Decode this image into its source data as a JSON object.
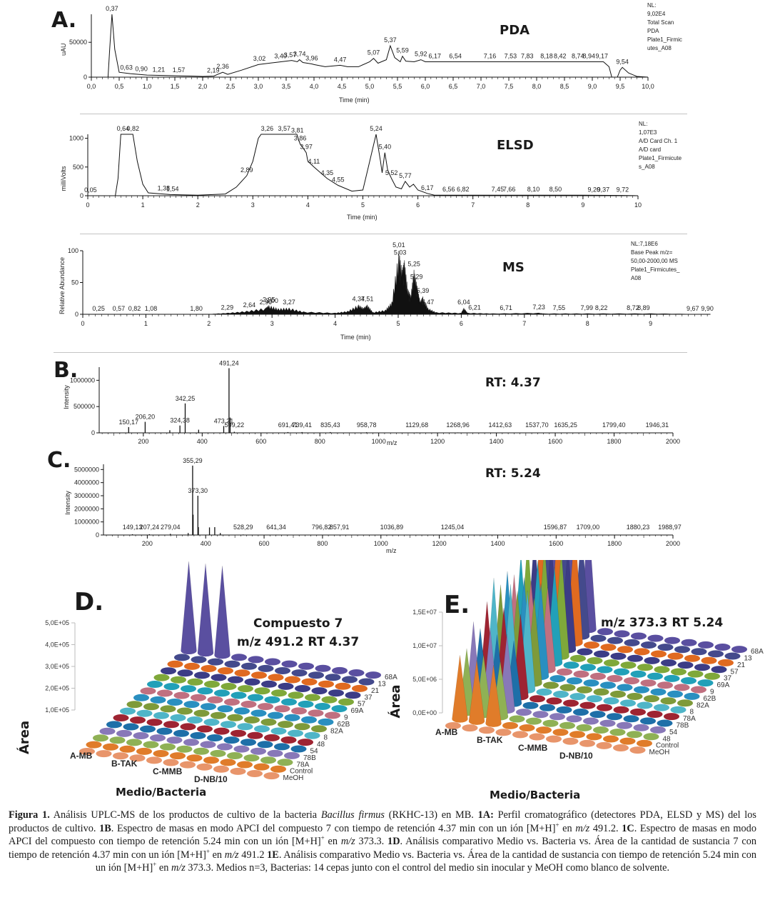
{
  "figure": {
    "panel_letters": {
      "A": "A.",
      "B": "B.",
      "C": "C.",
      "D": "D.",
      "E": "E."
    },
    "caption": {
      "label": "Figura 1.",
      "text_1": " Análisis UPLC-MS de los productos de cultivo de la bacteria ",
      "species": "Bacillus firmus",
      "text_2": " (RKHC-13) en MB. ",
      "ref_1A": "1A:",
      "text_3": " Perfil cromatográfico (detectores PDA, ELSD y MS) del los productos de cultivo. ",
      "ref_1B": "1B",
      "text_4": ". Espectro de masas en modo APCI del compuesto 7 con tiempo de retención 4.37 min con un ión [M+H]",
      "sup": "+",
      "text_5": " en ",
      "mz": "m/z",
      "text_6": " 491.2. ",
      "ref_1C": "1C",
      "text_7": ". Espectro de masas en modo APCI del compuesto con tiempo de retención 5.24 min con un ión [M+H]",
      "text_8": " en ",
      "text_9": " 373.3. ",
      "ref_1D": "1D",
      "text_10": ". Análisis comparativo Medio vs. Bacteria vs. Área de la cantidad de sustancia 7 con tiempo de retención 4.37 min con un ión [M+H]",
      "text_11": " en ",
      "text_12": " 491.2 ",
      "ref_1E": "1E",
      "text_13": ". Análisis comparativo Medio vs. Bacteria vs. Área de la cantidad de sustancia con tiempo de retención 5.24 min con un ión [M+H]",
      "text_14": " en ",
      "text_15": " 373.3. Medios n=3, Bacterias: 14 cepas junto con el control del medio sin inocular y MeOH como blanco de solvente."
    }
  },
  "chart_data": [
    {
      "id": "PDA",
      "type": "line",
      "title": "PDA",
      "xlabel": "Time (min)",
      "ylabel": "uAU",
      "xlim": [
        0,
        10
      ],
      "ylim": [
        0,
        90200
      ],
      "x_ticks": [
        "0,0",
        "0,5",
        "1,0",
        "1,5",
        "2,0",
        "2,5",
        "3,0",
        "3,5",
        "4,0",
        "4,5",
        "5,0",
        "5,5",
        "6,0",
        "6,5",
        "7,0",
        "7,5",
        "8,0",
        "8,5",
        "9,0",
        "9,5",
        "10,0"
      ],
      "y_ticks": [
        "0",
        "50000"
      ],
      "info": [
        "NL:",
        "9,02E4",
        "Total Scan",
        "PDA",
        "Plate1_Firmic",
        "utes_A08"
      ],
      "peak_labels": [
        "0,37",
        "0,63",
        "0,90",
        "1,21",
        "1,57",
        "2,19",
        "2,36",
        "3,02",
        "3,40",
        "3,57",
        "3,74",
        "3,96",
        "4,47",
        "5,07",
        "5,37",
        "5,59",
        "5,92",
        "6,17",
        "6,54",
        "7,16",
        "7,53",
        "7,83",
        "8,18",
        "8,42",
        "8,74",
        "8,94",
        "9,17",
        "9,54"
      ],
      "x": [
        0,
        0.3,
        0.33,
        0.37,
        0.42,
        0.5,
        0.7,
        1.0,
        1.5,
        1.8,
        2.0,
        2.2,
        2.3,
        2.36,
        2.45,
        2.7,
        3.0,
        3.3,
        3.5,
        3.6,
        3.7,
        3.74,
        3.8,
        3.96,
        4.0,
        4.2,
        4.47,
        4.6,
        4.8,
        5.0,
        5.07,
        5.15,
        5.3,
        5.37,
        5.45,
        5.55,
        5.59,
        5.65,
        5.8,
        5.92,
        6.0,
        6.5,
        7.0,
        7.5,
        8.0,
        8.5,
        9.0,
        9.2,
        9.3,
        9.35,
        9.45,
        9.5,
        9.54,
        9.65,
        9.8,
        10
      ],
      "y": [
        0,
        0,
        40000,
        90200,
        40000,
        7000,
        5000,
        3000,
        2000,
        1500,
        1000,
        1500,
        5000,
        7000,
        4000,
        10000,
        18000,
        21000,
        23000,
        24000,
        22000,
        25000,
        21000,
        19000,
        18000,
        15000,
        17000,
        15000,
        15000,
        22000,
        27000,
        20000,
        25000,
        45000,
        28000,
        22000,
        30000,
        23000,
        22000,
        25000,
        22000,
        22000,
        22000,
        22000,
        22000,
        22000,
        22000,
        22000,
        15000,
        0,
        0,
        10000,
        14000,
        6000,
        1000,
        0
      ]
    },
    {
      "id": "ELSD",
      "type": "line",
      "title": "ELSD",
      "xlabel": "Time (min)",
      "ylabel": "milliVolts",
      "xlim": [
        0,
        10
      ],
      "ylim": [
        0,
        1070
      ],
      "x_ticks": [
        "0",
        "1",
        "2",
        "3",
        "4",
        "5",
        "6",
        "7",
        "8",
        "9",
        "10"
      ],
      "y_ticks": [
        "0",
        "500",
        "1000"
      ],
      "info": [
        "NL:",
        "1,07E3",
        "A/D Card Ch. 1",
        "A/D card",
        "Plate1_Firmicute",
        "s_A08"
      ],
      "peak_labels": [
        "0,05",
        "0,64",
        "0,82",
        "1,38",
        "1,54",
        "2,89",
        "3,26",
        "3,57",
        "3,81",
        "3,86",
        "3,97",
        "4,11",
        "4,35",
        "4,55",
        "5,24",
        "5,40",
        "5,52",
        "5,77",
        "6,17",
        "6,56",
        "6,82",
        "7,45",
        "7,66",
        "8,10",
        "8,50",
        "9,20",
        "9,37",
        "9,72"
      ],
      "x": [
        0,
        0.5,
        0.55,
        0.6,
        0.82,
        0.9,
        1.0,
        1.1,
        1.5,
        2.0,
        2.5,
        2.7,
        2.89,
        3.0,
        3.1,
        3.15,
        3.8,
        3.86,
        3.9,
        3.97,
        4.0,
        4.11,
        4.35,
        4.55,
        4.8,
        5.0,
        5.1,
        5.24,
        5.32,
        5.35,
        5.4,
        5.45,
        5.52,
        5.6,
        5.7,
        5.77,
        5.85,
        5.92,
        6.0,
        6.17,
        6.3,
        7,
        8,
        9,
        9.72,
        10
      ],
      "y": [
        0,
        0,
        300,
        1070,
        1070,
        600,
        200,
        50,
        20,
        10,
        30,
        150,
        350,
        600,
        1000,
        1070,
        1070,
        900,
        850,
        750,
        600,
        500,
        300,
        180,
        80,
        100,
        500,
        1070,
        600,
        400,
        750,
        450,
        300,
        150,
        120,
        250,
        150,
        200,
        100,
        40,
        10,
        10,
        10,
        10,
        5,
        0
      ]
    },
    {
      "id": "MS",
      "type": "line",
      "title": "MS",
      "xlabel": "Time (min)",
      "ylabel": "Relative Abundance",
      "xlim": [
        0,
        10
      ],
      "ylim": [
        0,
        100
      ],
      "x_ticks": [
        "0",
        "1",
        "2",
        "3",
        "4",
        "5",
        "6",
        "7",
        "8",
        "9"
      ],
      "y_ticks": [
        "0",
        "50",
        "100"
      ],
      "info": [
        "NL:7,18E6",
        "Base Peak m/z=",
        "50,00-2000,00 MS",
        "Plate1_Firmicutes_",
        "A08"
      ],
      "peak_labels": [
        "0,25",
        "0,57",
        "0,82",
        "1,08",
        "1,80",
        "2,29",
        "2,64",
        "2,90",
        "2,95",
        "3,00",
        "3,27",
        "4,37",
        "4,51",
        "5,01",
        "5,03",
        "5,25",
        "5,29",
        "5,39",
        "5,47",
        "6,04",
        "6,21",
        "6,71",
        "7,23",
        "7,55",
        "7,99",
        "8,22",
        "8,72",
        "8,89",
        "9,67",
        "9,90"
      ],
      "x": [
        0,
        2.0,
        2.3,
        2.6,
        2.9,
        2.95,
        3.1,
        3.27,
        3.5,
        4.0,
        4.2,
        4.37,
        4.45,
        4.51,
        4.6,
        4.8,
        4.9,
        5.01,
        5.06,
        5.1,
        5.15,
        5.2,
        5.25,
        5.3,
        5.35,
        5.39,
        5.47,
        5.6,
        6.0,
        6.04,
        6.1,
        6.5,
        7.23,
        7.3,
        8,
        9,
        9.9
      ],
      "y": [
        0,
        0,
        2,
        5,
        10,
        14,
        9,
        10,
        4,
        2,
        5,
        15,
        10,
        15,
        3,
        7,
        20,
        100,
        70,
        85,
        40,
        30,
        70,
        45,
        20,
        28,
        10,
        3,
        2,
        10,
        2,
        1,
        2,
        1,
        1,
        1,
        0
      ]
    },
    {
      "id": "MS-B",
      "type": "bar",
      "title": "RT: 4.37",
      "xlabel": "m/z",
      "ylabel": "Intensity",
      "xlim": [
        50,
        2000
      ],
      "ylim": [
        0,
        1250000
      ],
      "x_ticks": [
        "200",
        "400",
        "600",
        "800",
        "1000",
        "1200",
        "1400",
        "1600",
        "1800",
        "2000"
      ],
      "y_ticks": [
        "0",
        "500000",
        "1000000"
      ],
      "peak_labels": [
        "150,17",
        "206,20",
        "324,38",
        "342,25",
        "473,21",
        "491,24",
        "509,22",
        "691,41",
        "739,41",
        "835,43",
        "958,78",
        "1129,68",
        "1268,96",
        "1412,63",
        "1537,70",
        "1635,25",
        "1799,40",
        "1946,31"
      ],
      "peaks": [
        {
          "mz": 150.17,
          "intensity": 110000
        },
        {
          "mz": 206.2,
          "intensity": 210000
        },
        {
          "mz": 290,
          "intensity": 50000
        },
        {
          "mz": 324.38,
          "intensity": 140000
        },
        {
          "mz": 342.25,
          "intensity": 560000
        },
        {
          "mz": 388,
          "intensity": 60000
        },
        {
          "mz": 473.21,
          "intensity": 130000
        },
        {
          "mz": 491.24,
          "intensity": 1230000
        },
        {
          "mz": 495,
          "intensity": 290000
        },
        {
          "mz": 509.22,
          "intensity": 20000
        },
        {
          "mz": 691.41,
          "intensity": 15000
        },
        {
          "mz": 739.41,
          "intensity": 15000
        },
        {
          "mz": 835.43,
          "intensity": 15000
        },
        {
          "mz": 958.78,
          "intensity": 12000
        },
        {
          "mz": 1129.68,
          "intensity": 8000
        },
        {
          "mz": 1268.96,
          "intensity": 8000
        },
        {
          "mz": 1412.63,
          "intensity": 6000
        },
        {
          "mz": 1537.7,
          "intensity": 6000
        },
        {
          "mz": 1635.25,
          "intensity": 6000
        },
        {
          "mz": 1799.4,
          "intensity": 5000
        },
        {
          "mz": 1946.31,
          "intensity": 5000
        }
      ]
    },
    {
      "id": "MS-C",
      "type": "bar",
      "title": "RT: 5.24",
      "xlabel": "m/z",
      "ylabel": "Intensity",
      "xlim": [
        50,
        2000
      ],
      "ylim": [
        0,
        5400000
      ],
      "x_ticks": [
        "200",
        "400",
        "600",
        "800",
        "1000",
        "1200",
        "1400",
        "1600",
        "1800",
        "2000"
      ],
      "y_ticks": [
        "0",
        "1000000",
        "2000000",
        "3000000",
        "4000000",
        "5000000"
      ],
      "peak_labels": [
        "149,13",
        "207,24",
        "279,04",
        "355,29",
        "373,30",
        "528,29",
        "641,34",
        "796,82",
        "857,91",
        "1036,89",
        "1245,04",
        "1596,87",
        "1709,00",
        "1880,23",
        "1988,97"
      ],
      "peaks": [
        {
          "mz": 149.13,
          "intensity": 60000
        },
        {
          "mz": 207.24,
          "intensity": 60000
        },
        {
          "mz": 279.04,
          "intensity": 90000
        },
        {
          "mz": 340,
          "intensity": 150000
        },
        {
          "mz": 355.29,
          "intensity": 5300000
        },
        {
          "mz": 357,
          "intensity": 1550000
        },
        {
          "mz": 373.3,
          "intensity": 3000000
        },
        {
          "mz": 375,
          "intensity": 600000
        },
        {
          "mz": 413,
          "intensity": 580000
        },
        {
          "mz": 431,
          "intensity": 600000
        },
        {
          "mz": 450,
          "intensity": 150000
        },
        {
          "mz": 528.29,
          "intensity": 40000
        },
        {
          "mz": 641.34,
          "intensity": 30000
        },
        {
          "mz": 796.82,
          "intensity": 25000
        },
        {
          "mz": 857.91,
          "intensity": 25000
        },
        {
          "mz": 1036.89,
          "intensity": 15000
        },
        {
          "mz": 1245.04,
          "intensity": 10000
        },
        {
          "mz": 1596.87,
          "intensity": 8000
        },
        {
          "mz": 1709.0,
          "intensity": 8000
        },
        {
          "mz": 1880.23,
          "intensity": 8000
        },
        {
          "mz": 1988.97,
          "intensity": 6000
        }
      ]
    },
    {
      "id": "D",
      "type": "bar3d",
      "title": [
        "Compuesto 7",
        "m/z 491.2 RT 4.37"
      ],
      "xlabel": "Medio/Bacteria",
      "ylabel": "Área",
      "ylim": [
        100000,
        500000
      ],
      "y_ticks": [
        "1,0E+05",
        "2,0E+05",
        "3,0E+05",
        "4,0E+05",
        "5,0E+05"
      ],
      "media": [
        "A-MB",
        "B-TAK",
        "C-MMB",
        "D-NB/10"
      ],
      "strains": [
        "MeOH",
        "Control",
        "78A",
        "78B",
        "54",
        "48",
        "8",
        "82A",
        "62B",
        "9",
        "69A",
        "57",
        "37",
        "21",
        "13",
        "68A"
      ],
      "note": "Only strain 68A shows peaks (3 replicate cones in A-MB, approx 5.5E+05); all other cells at baseline.",
      "highlight": {
        "strain": "68A",
        "values": [
          550000,
          540000,
          520000
        ]
      }
    },
    {
      "id": "E",
      "type": "bar3d",
      "title": [
        "m/z  373.3 RT 5.24"
      ],
      "xlabel": "Medio/Bacteria",
      "ylabel": "Área",
      "ylim": [
        0,
        15000000
      ],
      "y_ticks": [
        "0,0E+00",
        "5,0E+06",
        "1,0E+07",
        "1,5E+07"
      ],
      "media": [
        "A-MB",
        "B-TAK",
        "C-MMB",
        "D-NB/10"
      ],
      "strains": [
        "MeOH",
        "Control",
        "48",
        "54",
        "78B",
        "78A",
        "8",
        "82A",
        "62B",
        "9",
        "69A",
        "37",
        "57",
        "21",
        "13",
        "68A"
      ],
      "note": "Strong cones for most strains in A-MB (3 replicates each), ranging approx 1.0E+07 to 1.9E+07; other media near baseline."
    }
  ]
}
